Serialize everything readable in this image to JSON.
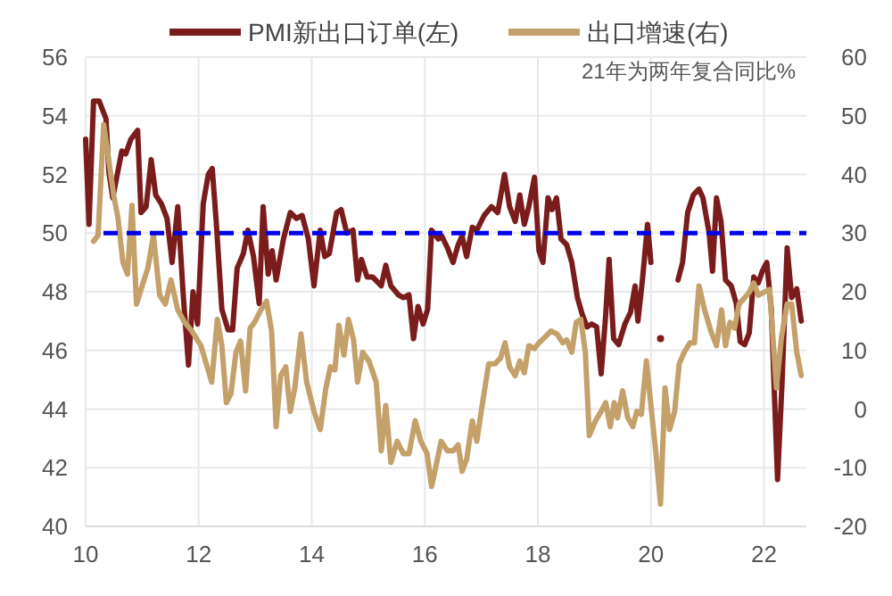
{
  "chart_data": {
    "type": "line",
    "annotations": [
      "21年为两年复合同比%"
    ],
    "xlim": [
      10,
      22.75
    ],
    "xticks": [
      10,
      12,
      14,
      16,
      18,
      20,
      22
    ],
    "ylim": [
      40,
      56
    ],
    "yticks": [
      40,
      42,
      44,
      46,
      48,
      50,
      52,
      54,
      56
    ],
    "y2lim": [
      -20,
      60
    ],
    "y2ticks": [
      -20,
      -10,
      0,
      10,
      20,
      30,
      40,
      50,
      60
    ],
    "grid": true,
    "legend": "top",
    "line_style": "solid",
    "marker": "none",
    "ref_lines": [
      {
        "axis": "y",
        "value": 50,
        "color": "#0000ee",
        "line_style": "dashed"
      }
    ],
    "series": [
      {
        "name": "PMI新出口订单(左)",
        "color": "#7b1c1c",
        "x": [
          10.0,
          10.06,
          10.14,
          10.24,
          10.36,
          10.41,
          10.48,
          10.55,
          10.64,
          10.71,
          10.8,
          10.92,
          10.98,
          11.07,
          11.16,
          11.24,
          11.34,
          11.44,
          11.53,
          11.63,
          11.73,
          11.82,
          11.9,
          11.98,
          12.08,
          12.17,
          12.24,
          12.31,
          12.41,
          12.52,
          12.6,
          12.68,
          12.79,
          12.87,
          12.97,
          13.07,
          13.14,
          13.23,
          13.3,
          13.37,
          13.5,
          13.62,
          13.73,
          13.83,
          13.94,
          14.04,
          14.15,
          14.23,
          14.31,
          14.44,
          14.52,
          14.62,
          14.73,
          14.81,
          14.88,
          14.98,
          15.08,
          15.23,
          15.31,
          15.4,
          15.53,
          15.62,
          15.72,
          15.8,
          15.88,
          15.97,
          16.05,
          16.12,
          16.24,
          16.3,
          16.4,
          16.5,
          16.59,
          16.66,
          16.74,
          16.84,
          16.92,
          17.05,
          17.18,
          17.29,
          17.41,
          17.5,
          17.6,
          17.68,
          17.76,
          17.84,
          17.94,
          18.02,
          18.09,
          18.18,
          18.25,
          18.33,
          18.41,
          18.51,
          18.6,
          18.7,
          18.79,
          18.87,
          18.95,
          19.04,
          19.12,
          19.2,
          19.26,
          19.34,
          19.43,
          19.54,
          19.64,
          19.72,
          19.77,
          19.85,
          19.94,
          20.0,
          20.08,
          20.17,
          20.25,
          20.33,
          20.48,
          20.56,
          20.65,
          20.75,
          20.85,
          20.92,
          21.03,
          21.09,
          21.16,
          21.24,
          21.32,
          21.42,
          21.51,
          21.58,
          21.66,
          21.74,
          21.82,
          21.9,
          21.97,
          22.05,
          22.13,
          22.24,
          22.32,
          22.41,
          22.49,
          22.58,
          22.66
        ],
        "values": [
          53.2,
          50.3,
          54.5,
          54.5,
          53.9,
          52.1,
          51.2,
          51.9,
          52.8,
          52.7,
          53.2,
          53.5,
          50.7,
          50.9,
          52.5,
          51.3,
          51.0,
          50.5,
          49.0,
          50.9,
          47.8,
          45.5,
          48.0,
          46.9,
          51.0,
          52.0,
          52.2,
          50.4,
          47.4,
          46.7,
          46.7,
          48.8,
          49.3,
          50.1,
          49.2,
          47.6,
          50.9,
          48.6,
          49.4,
          48.4,
          49.8,
          50.7,
          50.5,
          50.6,
          49.8,
          48.2,
          50.1,
          49.2,
          49.3,
          50.7,
          50.8,
          50.0,
          50.1,
          48.4,
          49.1,
          48.5,
          48.5,
          48.2,
          48.9,
          48.2,
          47.9,
          47.8,
          47.9,
          46.4,
          47.5,
          46.9,
          47.4,
          50.1,
          49.8,
          49.9,
          49.5,
          49.0,
          49.6,
          49.9,
          49.2,
          50.2,
          50.1,
          50.6,
          50.9,
          50.7,
          52.0,
          50.9,
          50.4,
          51.3,
          50.3,
          50.9,
          51.9,
          49.4,
          49.0,
          51.2,
          50.8,
          51.2,
          49.8,
          49.6,
          49.0,
          47.8,
          47.2,
          46.8,
          46.9,
          46.8,
          45.2,
          47.2,
          49.1,
          46.4,
          46.2,
          46.9,
          47.3,
          48.2,
          47.0,
          48.4,
          50.3,
          49.0,
          null,
          46.4,
          null,
          null,
          48.4,
          49.0,
          50.7,
          51.3,
          51.5,
          51.2,
          50.0,
          48.7,
          51.2,
          50.4,
          48.4,
          48.2,
          47.6,
          46.3,
          46.2,
          46.6,
          48.5,
          48.3,
          48.7,
          49.0,
          47.4,
          41.6,
          44.9,
          49.5,
          47.8,
          48.1,
          47.0
        ]
      },
      {
        "name": "出口增速(右)",
        "color": "#c4a06a",
        "axis": "y2",
        "x": [
          10.14,
          10.22,
          10.32,
          10.41,
          10.5,
          10.57,
          10.66,
          10.74,
          10.82,
          10.9,
          11.0,
          11.1,
          11.2,
          11.31,
          11.41,
          11.51,
          11.63,
          11.75,
          11.88,
          12.04,
          12.23,
          12.33,
          12.41,
          12.49,
          12.57,
          12.66,
          12.74,
          12.83,
          12.91,
          12.99,
          13.1,
          13.2,
          13.29,
          13.37,
          13.45,
          13.54,
          13.62,
          13.7,
          13.81,
          13.91,
          14.04,
          14.15,
          14.25,
          14.33,
          14.41,
          14.48,
          14.57,
          14.65,
          14.74,
          14.81,
          14.9,
          15.01,
          15.14,
          15.23,
          15.31,
          15.4,
          15.51,
          15.62,
          15.72,
          15.83,
          15.93,
          16.04,
          16.12,
          16.29,
          16.4,
          16.5,
          16.59,
          16.66,
          16.74,
          16.84,
          16.92,
          17.03,
          17.13,
          17.24,
          17.34,
          17.42,
          17.5,
          17.6,
          17.68,
          17.76,
          17.84,
          17.94,
          18.02,
          18.13,
          18.23,
          18.34,
          18.44,
          18.51,
          18.6,
          18.68,
          18.76,
          18.84,
          18.91,
          19.02,
          19.12,
          19.2,
          19.28,
          19.35,
          19.41,
          19.5,
          19.59,
          19.68,
          19.75,
          19.83,
          19.92,
          20.0,
          20.09,
          20.17,
          20.25,
          20.33,
          20.42,
          20.5,
          20.59,
          20.69,
          20.77,
          20.85,
          20.95,
          21.06,
          21.16,
          21.25,
          21.32,
          21.4,
          21.48,
          21.56,
          21.65,
          21.74,
          21.82,
          21.9,
          22.0,
          22.1,
          22.22,
          22.31,
          22.41,
          22.49,
          22.58,
          22.66
        ],
        "values": [
          28.6,
          29.6,
          48.5,
          42.4,
          36.2,
          32.7,
          25.0,
          23.0,
          34.7,
          17.9,
          21.0,
          24.0,
          29.6,
          19.4,
          17.9,
          22.0,
          16.9,
          14.8,
          13.3,
          10.8,
          4.6,
          15.3,
          10.8,
          1.1,
          2.6,
          9.7,
          11.6,
          3.1,
          13.8,
          14.8,
          16.9,
          18.4,
          13.3,
          -3.0,
          5.7,
          7.2,
          -0.4,
          3.6,
          12.8,
          4.6,
          -0.4,
          -3.5,
          3.6,
          7.2,
          6.7,
          14.3,
          9.2,
          15.3,
          11.8,
          4.6,
          9.7,
          8.2,
          4.6,
          -7.1,
          0.6,
          -9.1,
          -5.5,
          -7.6,
          -7.6,
          -2.0,
          -5.5,
          -7.6,
          -13.2,
          -5.5,
          -7.1,
          -7.1,
          -6.1,
          -10.6,
          -8.6,
          -2.0,
          -5.5,
          1.6,
          7.7,
          7.7,
          8.7,
          11.3,
          7.2,
          5.7,
          8.2,
          6.2,
          10.8,
          10.3,
          11.3,
          12.3,
          13.3,
          12.8,
          11.3,
          11.8,
          9.7,
          14.8,
          15.3,
          9.7,
          -4.5,
          -2.0,
          -0.4,
          1.1,
          -3.0,
          1.1,
          -1.5,
          3.1,
          -1.5,
          -3.0,
          -0.4,
          -0.9,
          8.2,
          0.6,
          -7.6,
          -16.2,
          3.6,
          -3.5,
          -0.4,
          7.7,
          9.7,
          11.3,
          11.3,
          21.0,
          16.9,
          13.3,
          10.8,
          16.9,
          10.8,
          14.8,
          13.8,
          17.9,
          18.9,
          19.9,
          21.5,
          19.4,
          19.9,
          20.4,
          3.6,
          12.3,
          17.9,
          17.9,
          9.7,
          5.7
        ]
      }
    ]
  }
}
